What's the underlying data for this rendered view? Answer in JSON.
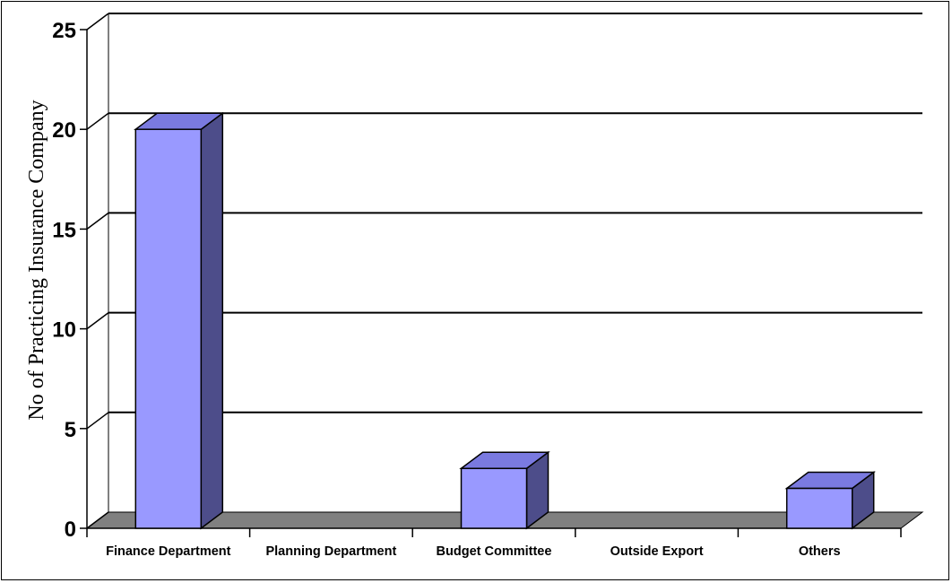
{
  "chart_data": {
    "type": "bar",
    "style": "3d-column",
    "categories": [
      "Finance Department",
      "Planning Department",
      "Budget Committee",
      "Outside Export",
      "Others"
    ],
    "values": [
      20,
      0,
      3,
      0,
      2
    ],
    "title": "",
    "xlabel": "",
    "ylabel": "No of Practicing Insurance Company",
    "ylim": [
      0,
      25
    ],
    "yticks": [
      "0",
      "5",
      "10",
      "15",
      "20",
      "25"
    ],
    "grid": true,
    "legend": "none"
  },
  "colors": {
    "bar_front": "#9999ff",
    "bar_top": "#7a7ae0",
    "bar_side": "#4d4d8a",
    "floor": "#808080",
    "gridline": "#000000"
  }
}
